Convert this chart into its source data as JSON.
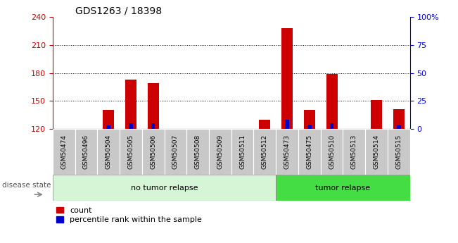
{
  "title": "GDS1263 / 18398",
  "samples": [
    "GSM50474",
    "GSM50496",
    "GSM50504",
    "GSM50505",
    "GSM50506",
    "GSM50507",
    "GSM50508",
    "GSM50509",
    "GSM50511",
    "GSM50512",
    "GSM50473",
    "GSM50475",
    "GSM50510",
    "GSM50513",
    "GSM50514",
    "GSM50515"
  ],
  "count_values": [
    120,
    120,
    140,
    173,
    169,
    120,
    120,
    120,
    120,
    130,
    228,
    140,
    179,
    120,
    151,
    141
  ],
  "percentile_values": [
    0,
    0,
    3,
    5,
    5,
    0,
    0,
    0,
    0,
    0,
    8,
    4,
    5,
    0,
    0,
    3
  ],
  "bar_bottom": 120,
  "ylim_left": [
    120,
    240
  ],
  "ylim_right": [
    0,
    100
  ],
  "yticks_left": [
    120,
    150,
    180,
    210,
    240
  ],
  "yticks_right": [
    0,
    25,
    50,
    75,
    100
  ],
  "yticklabels_right": [
    "0",
    "25",
    "50",
    "75",
    "100%"
  ],
  "grid_lines": [
    150,
    180,
    210
  ],
  "no_relapse_count": 10,
  "tumor_relapse_count": 6,
  "no_relapse_label": "no tumor relapse",
  "tumor_relapse_label": "tumor relapse",
  "disease_state_label": "disease state",
  "legend_count_label": "count",
  "legend_percentile_label": "percentile rank within the sample",
  "bar_width": 0.5,
  "count_color": "#cc0000",
  "percentile_color": "#0000cc",
  "no_relapse_bg": "#d6f5d6",
  "tumor_relapse_bg": "#44dd44",
  "xlabel_bg": "#c8c8c8",
  "title_fontsize": 10,
  "tick_fontsize": 8,
  "label_fontsize": 8.5
}
